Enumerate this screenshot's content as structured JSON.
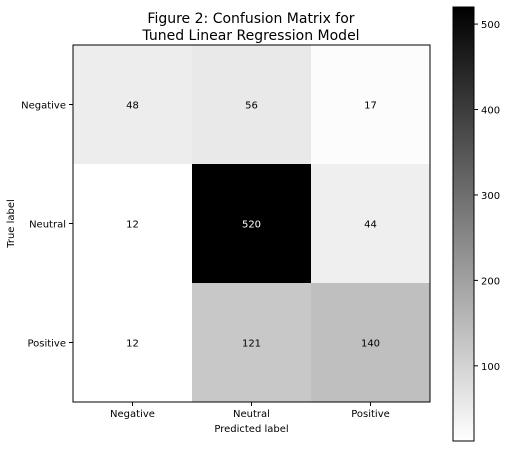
{
  "chart_data": {
    "type": "heatmap",
    "title_lines": [
      "Figure 2: Confusion Matrix for",
      "Tuned Linear Regression Model"
    ],
    "xlabel": "Predicted label",
    "ylabel": "True label",
    "x_categories": [
      "Negative",
      "Neutral",
      "Positive"
    ],
    "y_categories": [
      "Negative",
      "Neutral",
      "Positive"
    ],
    "values": [
      [
        48,
        56,
        17
      ],
      [
        12,
        520,
        44
      ],
      [
        12,
        121,
        140
      ]
    ],
    "colormap": "greys",
    "color_range": [
      12,
      520
    ],
    "colorbar_ticks": [
      100,
      200,
      300,
      400,
      500
    ],
    "grid": false
  }
}
